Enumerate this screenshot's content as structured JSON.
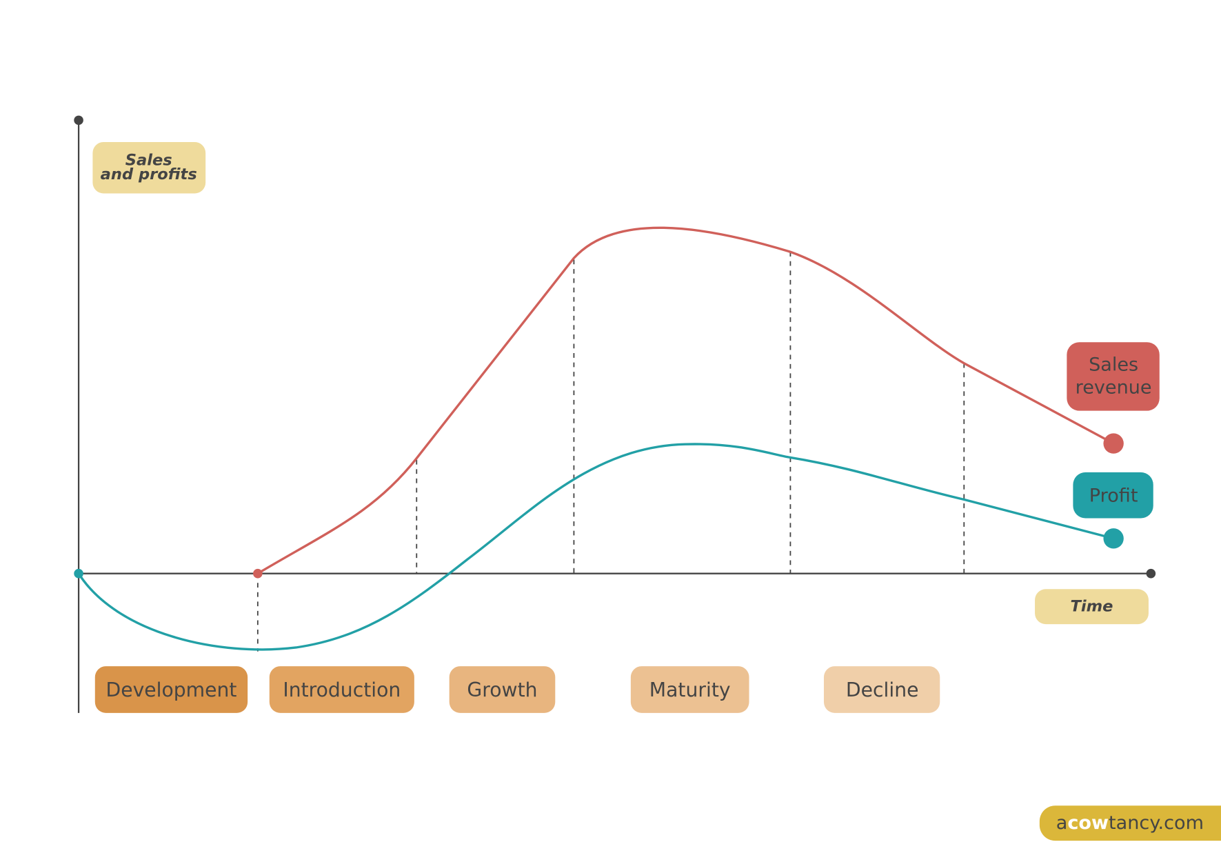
{
  "axes": {
    "y_label": [
      "Sales",
      "and profits"
    ],
    "x_label": "Time"
  },
  "stages": [
    "Development",
    "Introduction",
    "Growth",
    "Maturity",
    "Decline"
  ],
  "legend": {
    "sales": [
      "Sales",
      "revenue"
    ],
    "profit": "Profit"
  },
  "brand": [
    "a",
    "cow",
    "tancy.com"
  ]
}
